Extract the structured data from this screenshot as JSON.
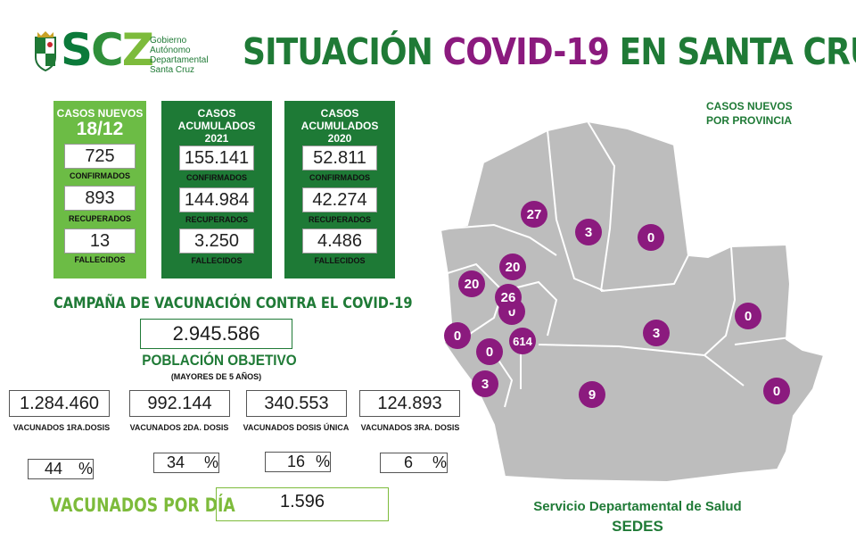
{
  "header": {
    "logo_letters": [
      "S",
      "C",
      "Z"
    ],
    "logo_subtitle": [
      "Gobierno",
      "Autónomo",
      "Departamental",
      "Santa Cruz"
    ],
    "title_start": "SITUACIÓN",
    "title_accent": "COVID-19",
    "title_end": "EN SANTA CRUZ"
  },
  "cards": {
    "new": {
      "title": "CASOS NUEVOS",
      "date": "18/12",
      "confirmados": "725",
      "confirmados_label": "CONFIRMADOS",
      "recuperados": "893",
      "recuperados_label": "RECUPERADOS",
      "fallecidos": "13",
      "fallecidos_label": "FALLECIDOS"
    },
    "acc2021": {
      "title": "CASOS ACUMULADOS",
      "year": "2021",
      "confirmados": "155.141",
      "confirmados_label": "CONFIRMADOS",
      "recuperados": "144.984",
      "recuperados_label": "RECUPERADOS",
      "fallecidos": "3.250",
      "fallecidos_label": "FALLECIDOS"
    },
    "acc2020": {
      "title": "CASOS ACUMULADOS",
      "year": "2020",
      "confirmados": "52.811",
      "confirmados_label": "CONFIRMADOS",
      "recuperados": "42.274",
      "recuperados_label": "RECUPERADOS",
      "fallecidos": "4.486",
      "fallecidos_label": "FALLECIDOS"
    }
  },
  "vaccination": {
    "campaign_title": "CAMPAÑA DE VACUNACIÓN CONTRA EL COVID-19",
    "population_value": "2.945.586",
    "population_label": "POBLACIÓN OBJETIVO",
    "population_sub": "(MAYORES DE 5 AÑOS)",
    "doses": [
      {
        "value": "1.284.460",
        "label": "VACUNADOS 1RA.DOSIS",
        "percent": "44",
        "percent_sign": "%"
      },
      {
        "value": "992.144",
        "label": "VACUNADOS 2DA. DOSIS",
        "percent": "34",
        "percent_sign": "%"
      },
      {
        "value": "340.553",
        "label": "VACUNADOS DOSIS ÚNICA",
        "percent": "16",
        "percent_sign": "%"
      },
      {
        "value": "124.893",
        "label": "VACUNADOS 3RA. DOSIS",
        "percent": "6",
        "percent_sign": "%"
      }
    ],
    "per_day_label": "VACUNADOS POR DÍA",
    "per_day_value": "1.596"
  },
  "map": {
    "title_line1": "CASOS NUEVOS",
    "title_line2": "POR PROVINCIA",
    "region_fill": "#bdbdbd",
    "marker_color": "#8b1a7e",
    "markers": [
      "27",
      "3",
      "0",
      "20",
      "20",
      "0",
      "26",
      "0",
      "0",
      "614",
      "3",
      "0",
      "3",
      "9",
      "0"
    ]
  },
  "footer": {
    "line1": "Servicio Departamental de Salud",
    "line2": "SEDES"
  }
}
